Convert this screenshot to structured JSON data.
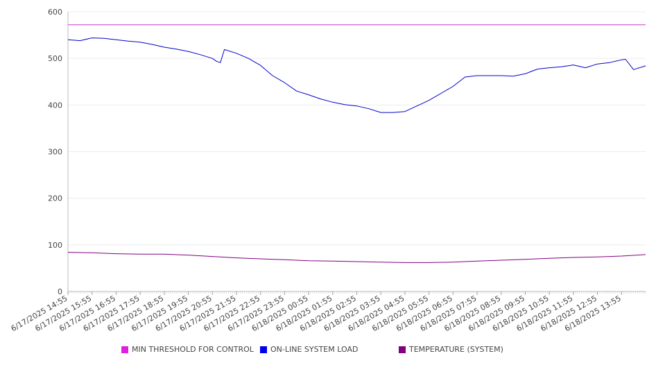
{
  "chart_data": {
    "type": "line",
    "title": "",
    "xlabel": "",
    "ylabel": "",
    "ylim": [
      0,
      600
    ],
    "y_ticks": [
      "0",
      "100",
      "200",
      "300",
      "400",
      "500",
      "600"
    ],
    "grid": "horizontal",
    "legend_position": "bottom",
    "x_ticks": [
      "6/17/2025 14:55",
      "6/17/2025 15:55",
      "6/17/2025 16:55",
      "6/17/2025 17:55",
      "6/17/2025 18:55",
      "6/17/2025 19:55",
      "6/17/2025 20:55",
      "6/17/2025 21:55",
      "6/17/2025 22:55",
      "6/17/2025 23:55",
      "6/18/2025 00:55",
      "6/18/2025 01:55",
      "6/18/2025 02:55",
      "6/18/2025 03:55",
      "6/18/2025 04:55",
      "6/18/2025 05:55",
      "6/18/2025 06:55",
      "6/18/2025 07:55",
      "6/18/2025 08:55",
      "6/18/2025 09:55",
      "6/18/2025 10:55",
      "6/18/2025 11:55",
      "6/18/2025 12:55",
      "6/18/2025 13:55"
    ],
    "x_end": "6/18/2025 14:55",
    "series": [
      {
        "name": "MIN THRESHOLD FOR CONTROL",
        "color": "#cc33cc",
        "x": [
          "6/17/2025 14:55",
          "6/18/2025 14:55"
        ],
        "values": [
          572,
          572
        ]
      },
      {
        "name": "ON-LINE SYSTEM LOAD",
        "color": "#0000cc",
        "x": [
          "6/17/2025 14:55",
          "6/17/2025 15:25",
          "6/17/2025 15:55",
          "6/17/2025 16:25",
          "6/17/2025 16:55",
          "6/17/2025 17:25",
          "6/17/2025 17:55",
          "6/17/2025 18:25",
          "6/17/2025 18:55",
          "6/17/2025 19:25",
          "6/17/2025 19:55",
          "6/17/2025 20:25",
          "6/17/2025 20:55",
          "6/17/2025 21:05",
          "6/17/2025 21:15",
          "6/17/2025 21:25",
          "6/17/2025 21:55",
          "6/17/2025 22:25",
          "6/17/2025 22:55",
          "6/17/2025 23:25",
          "6/17/2025 23:55",
          "6/18/2025 00:25",
          "6/18/2025 00:55",
          "6/18/2025 01:25",
          "6/18/2025 01:55",
          "6/18/2025 02:25",
          "6/18/2025 02:55",
          "6/18/2025 03:25",
          "6/18/2025 03:55",
          "6/18/2025 04:25",
          "6/18/2025 04:55",
          "6/18/2025 05:25",
          "6/18/2025 05:55",
          "6/18/2025 06:25",
          "6/18/2025 06:55",
          "6/18/2025 07:25",
          "6/18/2025 07:55",
          "6/18/2025 08:25",
          "6/18/2025 08:55",
          "6/18/2025 09:25",
          "6/18/2025 09:55",
          "6/18/2025 10:25",
          "6/18/2025 10:55",
          "6/18/2025 11:25",
          "6/18/2025 11:55",
          "6/18/2025 12:25",
          "6/18/2025 12:55",
          "6/18/2025 13:25",
          "6/18/2025 13:55",
          "6/18/2025 14:05",
          "6/18/2025 14:25",
          "6/18/2025 14:55"
        ],
        "values": [
          540,
          538,
          544,
          543,
          540,
          537,
          535,
          530,
          524,
          520,
          515,
          508,
          500,
          494,
          491,
          519,
          511,
          500,
          485,
          463,
          448,
          430,
          422,
          413,
          406,
          401,
          398,
          392,
          384,
          384,
          386,
          398,
          410,
          425,
          440,
          460,
          463,
          463,
          463,
          462,
          467,
          477,
          480,
          482,
          486,
          480,
          488,
          491,
          497,
          498,
          476,
          484
        ]
      },
      {
        "name": "TEMPERATURE (SYSTEM)",
        "color": "#800080",
        "x": [
          "6/17/2025 14:55",
          "6/17/2025 15:55",
          "6/17/2025 16:55",
          "6/17/2025 17:55",
          "6/17/2025 18:55",
          "6/17/2025 19:55",
          "6/17/2025 20:55",
          "6/17/2025 21:55",
          "6/17/2025 22:55",
          "6/17/2025 23:55",
          "6/18/2025 00:55",
          "6/18/2025 01:55",
          "6/18/2025 02:55",
          "6/18/2025 03:55",
          "6/18/2025 04:55",
          "6/18/2025 05:55",
          "6/18/2025 06:55",
          "6/18/2025 07:55",
          "6/18/2025 08:55",
          "6/18/2025 09:55",
          "6/18/2025 10:55",
          "6/18/2025 11:55",
          "6/18/2025 12:55",
          "6/18/2025 13:55",
          "6/18/2025 14:55"
        ],
        "values": [
          84,
          83,
          81,
          80,
          80,
          78,
          75,
          72,
          70,
          68,
          66,
          65,
          64,
          63,
          62,
          62,
          63,
          65,
          67,
          69,
          71,
          73,
          74,
          76,
          79
        ]
      }
    ]
  }
}
